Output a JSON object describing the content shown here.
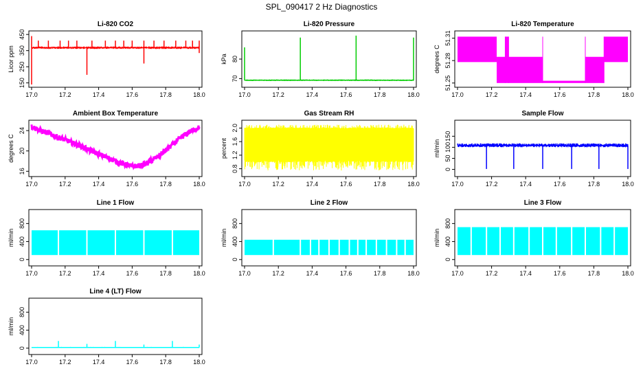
{
  "page_title": "SPL_090417  2 Hz Diagnostics",
  "chart_data": [
    {
      "type": "line",
      "title": "Li-820 CO2",
      "ylabel": "Licor ppm",
      "color": "#ff0000",
      "xlim": [
        17.0,
        18.0
      ],
      "xticks": [
        17.0,
        17.2,
        17.4,
        17.6,
        17.8,
        18.0
      ],
      "xtick_labels": [
        "17.0",
        "17.2",
        "17.4",
        "17.6",
        "17.8",
        "18.0"
      ],
      "ylim": [
        140,
        455
      ],
      "yticks": [
        150,
        250,
        350,
        450
      ],
      "ytick_labels": [
        "150",
        "250",
        "350",
        "450"
      ],
      "baseline": [
        [
          17.0,
          368
        ],
        [
          18.0,
          368
        ]
      ],
      "band": [
        360,
        376
      ],
      "spikes": [
        [
          17.0,
          140
        ],
        [
          17.0,
          440
        ],
        [
          17.04,
          412
        ],
        [
          17.1,
          412
        ],
        [
          17.17,
          412
        ],
        [
          17.22,
          412
        ],
        [
          17.27,
          412
        ],
        [
          17.33,
          200
        ],
        [
          17.36,
          412
        ],
        [
          17.44,
          412
        ],
        [
          17.5,
          412
        ],
        [
          17.55,
          412
        ],
        [
          17.6,
          412
        ],
        [
          17.67,
          270
        ],
        [
          17.67,
          412
        ],
        [
          17.73,
          412
        ],
        [
          17.79,
          412
        ],
        [
          17.86,
          412
        ],
        [
          17.92,
          412
        ],
        [
          17.96,
          412
        ],
        [
          18.0,
          335
        ],
        [
          18.0,
          412
        ]
      ]
    },
    {
      "type": "line",
      "title": "Li-820 Pressure",
      "ylabel": "kPa",
      "color": "#00cc00",
      "xlim": [
        17.0,
        18.0
      ],
      "xticks": [
        17.0,
        17.2,
        17.4,
        17.6,
        17.8,
        18.0
      ],
      "xtick_labels": [
        "17.0",
        "17.2",
        "17.4",
        "17.6",
        "17.8",
        "18.0"
      ],
      "ylim": [
        67,
        93
      ],
      "yticks": [
        70,
        80
      ],
      "ytick_labels": [
        "70",
        "80"
      ],
      "baseline": [
        [
          17.0,
          69.2
        ],
        [
          18.0,
          69.2
        ]
      ],
      "band": [
        68.8,
        69.6
      ],
      "spikes": [
        [
          17.0,
          86
        ],
        [
          17.33,
          91
        ],
        [
          17.66,
          92
        ],
        [
          18.0,
          91
        ]
      ]
    },
    {
      "type": "area",
      "title": "Li-820 Temperature",
      "ylabel": "degrees C",
      "color": "#ff00ff",
      "xlim": [
        17.0,
        18.0
      ],
      "xticks": [
        17.0,
        17.2,
        17.4,
        17.6,
        17.8,
        18.0
      ],
      "xtick_labels": [
        "17.0",
        "17.2",
        "17.4",
        "17.6",
        "17.8",
        "18.0"
      ],
      "ylim": [
        51.248,
        51.316
      ],
      "yticks": [
        51.25,
        51.28,
        51.31
      ],
      "ytick_labels": [
        "51.25",
        "51.28",
        "51.31"
      ],
      "segments": [
        [
          17.0,
          17.23,
          51.278,
          51.312
        ],
        [
          17.28,
          17.3,
          51.278,
          51.312
        ],
        [
          17.23,
          17.5,
          51.25,
          51.285
        ],
        [
          17.5,
          17.75,
          51.25,
          51.253
        ],
        [
          17.75,
          17.86,
          51.25,
          51.285
        ],
        [
          17.86,
          18.0,
          51.278,
          51.312
        ]
      ]
    },
    {
      "type": "line",
      "title": "Ambient Box Temperature",
      "ylabel": "degrees C",
      "color": "#ff00ff",
      "xlim": [
        17.0,
        18.0
      ],
      "xticks": [
        17.0,
        17.2,
        17.4,
        17.6,
        17.8,
        18.0
      ],
      "xtick_labels": [
        "17.0",
        "17.2",
        "17.4",
        "17.6",
        "17.8",
        "18.0"
      ],
      "ylim": [
        15.5,
        25.5
      ],
      "yticks": [
        16,
        20,
        24
      ],
      "ytick_labels": [
        "16",
        "20",
        "24"
      ],
      "x": [
        17.0,
        17.05,
        17.1,
        17.15,
        17.2,
        17.25,
        17.3,
        17.35,
        17.4,
        17.45,
        17.5,
        17.55,
        17.6,
        17.65,
        17.7,
        17.75,
        17.8,
        17.85,
        17.9,
        17.95,
        18.0
      ],
      "y": [
        24.8,
        24.1,
        23.5,
        22.8,
        22.2,
        21.5,
        20.9,
        20.1,
        19.4,
        18.7,
        18.0,
        17.4,
        17.0,
        17.1,
        17.8,
        18.8,
        20.1,
        21.5,
        22.8,
        23.9,
        24.6
      ],
      "noise": 0.5
    },
    {
      "type": "area",
      "title": "Gas Stream RH",
      "ylabel": "percent",
      "color": "#ffff00",
      "xlim": [
        17.0,
        18.0
      ],
      "xticks": [
        17.0,
        17.2,
        17.4,
        17.6,
        17.8,
        18.0
      ],
      "xtick_labels": [
        "17.0",
        "17.2",
        "17.4",
        "17.6",
        "17.8",
        "18.0"
      ],
      "ylim": [
        0.65,
        2.15
      ],
      "yticks": [
        0.8,
        1.2,
        1.6,
        2.0
      ],
      "ytick_labels": [
        "0.8",
        "1.2",
        "1.6",
        "2.0"
      ],
      "band": [
        1.05,
        1.98
      ],
      "low": [
        0.75,
        1.0
      ],
      "high": [
        2.0,
        2.1
      ]
    },
    {
      "type": "line",
      "title": "Sample Flow",
      "ylabel": "ml/min",
      "color": "#0000ff",
      "xlim": [
        17.0,
        18.0
      ],
      "xticks": [
        17.0,
        17.2,
        17.4,
        17.6,
        17.8,
        18.0
      ],
      "xtick_labels": [
        "17.0",
        "17.2",
        "17.4",
        "17.6",
        "17.8",
        "18.0"
      ],
      "ylim": [
        -20,
        210
      ],
      "yticks": [
        0,
        50,
        100,
        150
      ],
      "ytick_labels": [
        "0",
        "50",
        "100",
        "150"
      ],
      "baseline": [
        [
          17.0,
          108
        ],
        [
          18.0,
          108
        ]
      ],
      "band": [
        100,
        118
      ],
      "dips": [
        [
          17.17,
          2
        ],
        [
          17.33,
          2
        ],
        [
          17.5,
          2
        ],
        [
          17.67,
          2
        ],
        [
          17.83,
          2
        ],
        [
          18.0,
          2
        ]
      ]
    },
    {
      "type": "area",
      "title": "Line 1 Flow",
      "ylabel": "ml/min",
      "color": "#00ffff",
      "xlim": [
        17.0,
        18.0
      ],
      "xticks": [
        17.0,
        17.2,
        17.4,
        17.6,
        17.8,
        18.0
      ],
      "xtick_labels": [
        "17.0",
        "17.2",
        "17.4",
        "17.6",
        "17.8",
        "18.0"
      ],
      "ylim": [
        -80,
        1050
      ],
      "yticks": [
        0,
        400,
        800
      ],
      "ytick_labels": [
        "0",
        "400",
        "800"
      ],
      "band": [
        100,
        650
      ],
      "gaps": [
        17.16,
        17.33,
        17.5,
        17.67,
        17.84
      ]
    },
    {
      "type": "area",
      "title": "Line 2 Flow",
      "ylabel": "ml/min",
      "color": "#00ffff",
      "xlim": [
        17.0,
        18.0
      ],
      "xticks": [
        17.0,
        17.2,
        17.4,
        17.6,
        17.8,
        18.0
      ],
      "xtick_labels": [
        "17.0",
        "17.2",
        "17.4",
        "17.6",
        "17.8",
        "18.0"
      ],
      "ylim": [
        -80,
        1050
      ],
      "yticks": [
        0,
        400,
        800
      ],
      "ytick_labels": [
        "0",
        "400",
        "800"
      ],
      "band": [
        100,
        440
      ],
      "gaps": [
        17.17,
        17.33,
        17.39,
        17.44,
        17.5,
        17.56,
        17.62,
        17.67,
        17.72,
        17.78,
        17.84,
        17.9,
        17.95
      ]
    },
    {
      "type": "area",
      "title": "Line 3 Flow",
      "ylabel": "ml/min",
      "color": "#00ffff",
      "xlim": [
        17.0,
        18.0
      ],
      "xticks": [
        17.0,
        17.2,
        17.4,
        17.6,
        17.8,
        18.0
      ],
      "xtick_labels": [
        "17.0",
        "17.2",
        "17.4",
        "17.6",
        "17.8",
        "18.0"
      ],
      "ylim": [
        -80,
        1050
      ],
      "yticks": [
        0,
        400,
        800
      ],
      "ytick_labels": [
        "0",
        "400",
        "800"
      ],
      "band": [
        100,
        720
      ],
      "gaps": [
        17.08,
        17.17,
        17.25,
        17.33,
        17.42,
        17.5,
        17.58,
        17.67,
        17.75,
        17.84,
        17.92
      ]
    },
    {
      "type": "line",
      "title": "Line 4 (LT) Flow",
      "ylabel": "ml/min",
      "color": "#00ffff",
      "xlim": [
        17.0,
        18.0
      ],
      "xticks": [
        17.0,
        17.2,
        17.4,
        17.6,
        17.8,
        18.0
      ],
      "xtick_labels": [
        "17.0",
        "17.2",
        "17.4",
        "17.6",
        "17.8",
        "18.0"
      ],
      "ylim": [
        -80,
        1050
      ],
      "yticks": [
        0,
        400,
        800
      ],
      "ytick_labels": [
        "0",
        "400",
        "800"
      ],
      "baseline": [
        [
          17.0,
          15
        ],
        [
          18.0,
          15
        ]
      ],
      "band": [
        8,
        28
      ],
      "spikes": [
        [
          17.16,
          160
        ],
        [
          17.33,
          95
        ],
        [
          17.5,
          160
        ],
        [
          17.67,
          80
        ],
        [
          17.84,
          160
        ],
        [
          18.0,
          80
        ]
      ]
    }
  ]
}
